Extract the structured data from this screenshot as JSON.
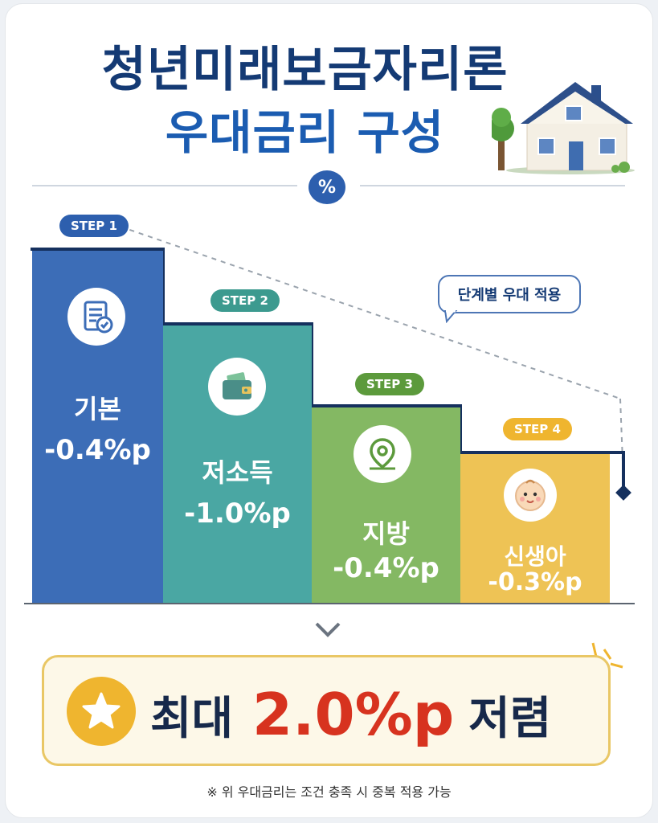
{
  "header": {
    "title_line1": "청년미래보금자리론",
    "title_line2": "우대금리 구성",
    "badge": "%"
  },
  "callout": "단계별 우대 적용",
  "steps": [
    {
      "step": "STEP 1",
      "label": "기본",
      "value": "-0.4%p",
      "color": "#3c6db7",
      "icon": "document-check-icon"
    },
    {
      "step": "STEP 2",
      "label": "저소득",
      "value": "-1.0%p",
      "color": "#4aa7a3",
      "icon": "wallet-icon"
    },
    {
      "step": "STEP 3",
      "label": "지방",
      "value": "-0.4%p",
      "color": "#84b863",
      "icon": "location-pin-icon"
    },
    {
      "step": "STEP 4",
      "label": "신생아",
      "value": "-0.3%p",
      "color": "#eec355",
      "icon": "baby-face-icon"
    }
  ],
  "summary": {
    "prefix": "최대",
    "amount": "2.0%p",
    "suffix": "저렴"
  },
  "footnote": "※ 위 우대금리는 조건 충족 시 중복 적용 가능"
}
